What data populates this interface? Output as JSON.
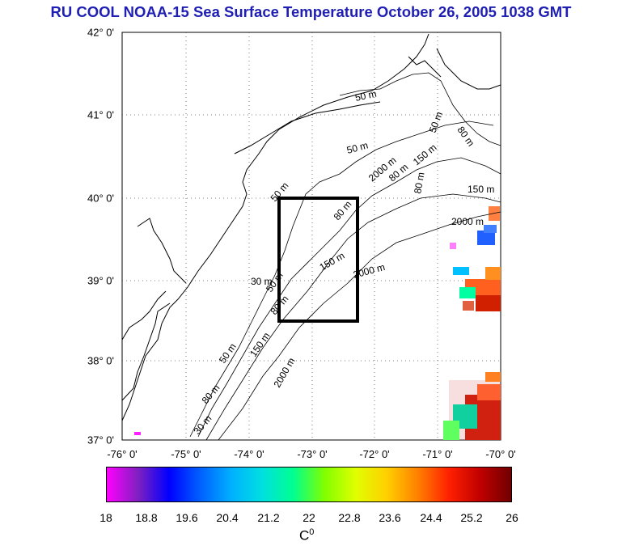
{
  "title": "RU COOL  NOAA-15 Sea Surface Temperature October 26, 2005 1038 GMT",
  "lat_labels": [
    "42° 0'",
    "41° 0'",
    "40° 0'",
    "39° 0'",
    "38° 0'",
    "37° 0'"
  ],
  "lon_labels": [
    "-76° 0'",
    "-75° 0'",
    "-74° 0'",
    "-73° 0'",
    "-72° 0'",
    "-71° 0'",
    "-70° 0'"
  ],
  "isobath_labels": [
    "50 m",
    "50 m",
    "50 m",
    "80 m",
    "80 m",
    "150 m",
    "150 m",
    "2000 m",
    "2000 m",
    "2000 m",
    "50 m",
    "80 m",
    "80 m",
    "30 m",
    "150 m",
    "80 m",
    "150 m",
    "2000 m",
    "50 m",
    "80 m",
    "50 m",
    "30 m"
  ],
  "colorbar": {
    "ticks": [
      "18",
      "18.8",
      "19.6",
      "20.4",
      "21.2",
      "22",
      "22.8",
      "23.6",
      "24.4",
      "25.2",
      "26"
    ],
    "unit": "C",
    "unit_sup": "0",
    "colors": [
      "#ff00ff",
      "#8020c0",
      "#0000ff",
      "#0060ff",
      "#00b0ff",
      "#00e0e0",
      "#00ff90",
      "#80ff00",
      "#e0ff00",
      "#ffd000",
      "#ff8000",
      "#ff2000",
      "#c00000",
      "#700000"
    ]
  },
  "colors": {
    "title": "#1f1fb4",
    "box": "#000000"
  }
}
